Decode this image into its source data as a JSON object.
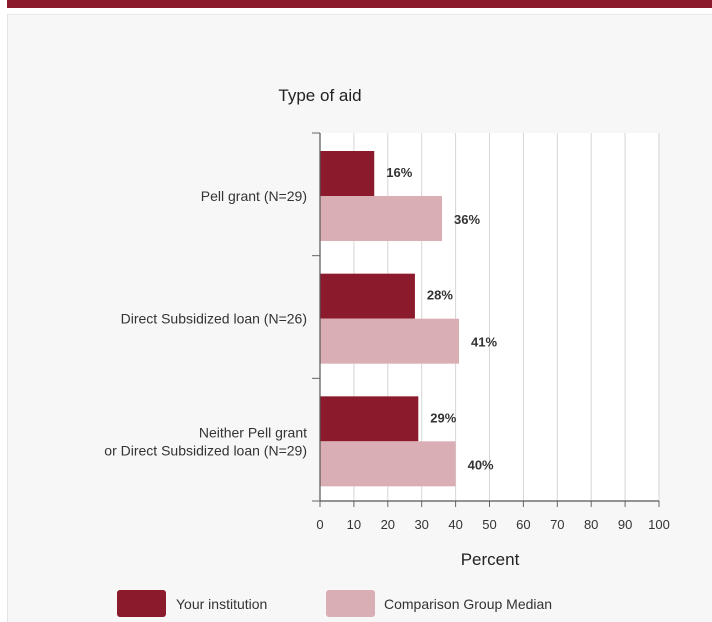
{
  "chart_data": {
    "type": "bar",
    "orientation": "horizontal",
    "title": "Type of aid",
    "xlabel": "Percent",
    "xlim": [
      0,
      100
    ],
    "xticks": [
      "0",
      "10",
      "20",
      "30",
      "40",
      "50",
      "60",
      "70",
      "80",
      "90",
      "100"
    ],
    "grid": "vertical",
    "categories": [
      [
        "Pell grant  (N=29)"
      ],
      [
        "Direct Subsidized loan (N=26)"
      ],
      [
        "Neither Pell grant",
        "or Direct Subsidized loan (N=29)"
      ]
    ],
    "series": [
      {
        "name": "Your institution",
        "color": "#8b1a2c",
        "values": [
          16,
          28,
          29
        ],
        "labels": [
          "16%",
          "28%",
          "29%"
        ]
      },
      {
        "name": "Comparison Group Median",
        "color": "#d9aeb4",
        "values": [
          36,
          41,
          40
        ],
        "labels": [
          "36%",
          "41%",
          "40%"
        ]
      }
    ],
    "legend": "bottom"
  }
}
